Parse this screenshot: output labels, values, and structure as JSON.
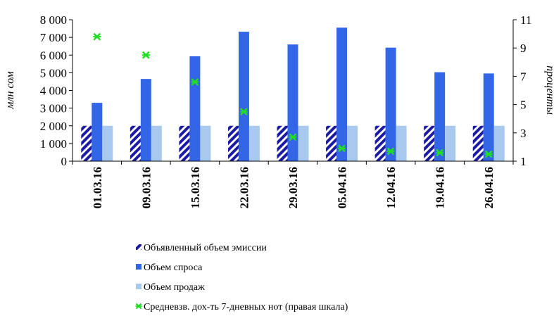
{
  "chart_data": {
    "type": "bar",
    "categories": [
      "01.03.16",
      "09.03.16",
      "15.03.16",
      "22.03.16",
      "29.03.16",
      "05.04.16",
      "12.04.16",
      "19.04.16",
      "26.04.16"
    ],
    "series": [
      {
        "name": "Объявленный объем эмиссии",
        "kind": "bar",
        "axis": "left",
        "color": "#1a1aa6",
        "pattern": "diagonal-stripes",
        "values": [
          2000,
          2000,
          2000,
          2000,
          2000,
          2000,
          2000,
          2000,
          2000
        ]
      },
      {
        "name": "Объем спроса",
        "kind": "bar",
        "axis": "left",
        "color": "#3366e6",
        "values": [
          3300,
          4650,
          5930,
          7320,
          6600,
          7550,
          6420,
          5030,
          4960
        ]
      },
      {
        "name": "Объем продаж",
        "kind": "bar",
        "axis": "left",
        "color": "#a9c8ee",
        "values": [
          2000,
          2000,
          2000,
          2000,
          2000,
          2000,
          2000,
          2000,
          2000
        ]
      },
      {
        "name": "Средневзв. дох-ть 7-дневных нот (правая шкала)",
        "kind": "marker",
        "axis": "right",
        "color": "#22dd22",
        "values": [
          9.8,
          8.5,
          6.6,
          4.5,
          2.7,
          1.9,
          1.7,
          1.6,
          1.5
        ]
      }
    ],
    "ylabel": "млн сом",
    "y2label": "проценты",
    "ylim": [
      0,
      8000
    ],
    "y_ticks": [
      0,
      1000,
      2000,
      3000,
      4000,
      5000,
      6000,
      7000,
      8000
    ],
    "y_tick_labels": [
      "0",
      "1 000",
      "2 000",
      "3 000",
      "4 000",
      "5 000",
      "6 000",
      "7 000",
      "8 000"
    ],
    "y2lim": [
      1,
      11
    ],
    "y2_ticks": [
      1,
      3,
      5,
      7,
      9,
      11
    ],
    "y2_tick_labels": [
      "1",
      "3",
      "5",
      "7",
      "9",
      "11"
    ],
    "grid": false,
    "legend_position": "bottom"
  }
}
